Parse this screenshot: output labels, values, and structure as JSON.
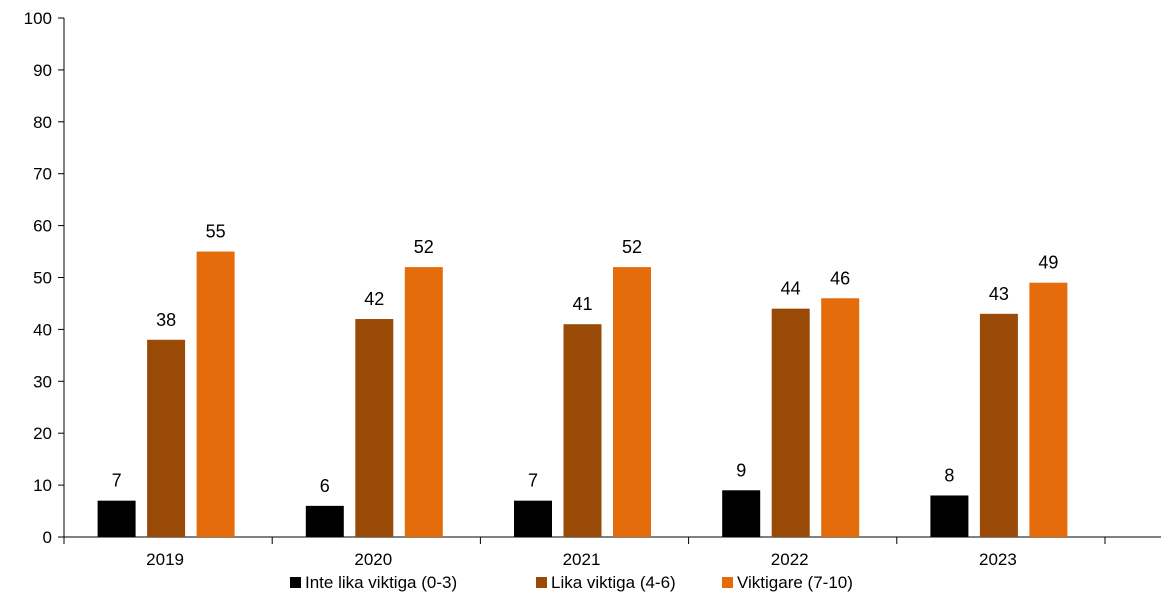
{
  "chart_data": {
    "type": "bar",
    "categories": [
      "2019",
      "2020",
      "2021",
      "2022",
      "2023"
    ],
    "series": [
      {
        "name": "Inte lika viktiga (0-3)",
        "color": "#000000",
        "values": [
          7,
          6,
          7,
          9,
          8
        ]
      },
      {
        "name": "Lika viktiga (4-6)",
        "color": "#9a4a07",
        "values": [
          38,
          42,
          41,
          44,
          43
        ]
      },
      {
        "name": "Viktigare (7-10)",
        "color": "#e46c0a",
        "values": [
          55,
          52,
          52,
          46,
          49
        ]
      }
    ],
    "ylim": [
      0,
      100
    ],
    "yticks": [
      0,
      10,
      20,
      30,
      40,
      50,
      60,
      70,
      80,
      90,
      100
    ],
    "legend_position": "bottom",
    "grid": false
  }
}
